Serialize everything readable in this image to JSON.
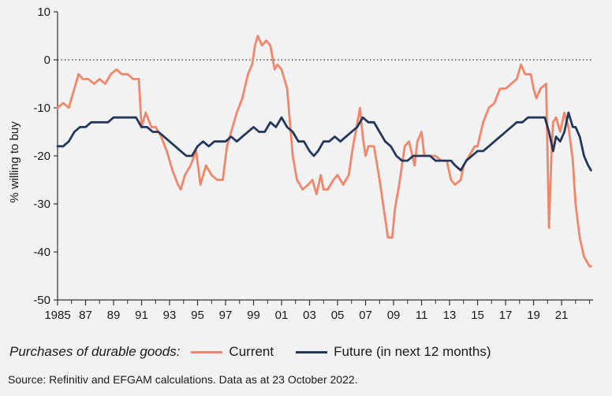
{
  "chart_data": {
    "type": "line",
    "ylabel": "% willing to buy",
    "xlabel": "",
    "ylim": [
      -50,
      10
    ],
    "yticks": [
      10,
      0,
      -10,
      -20,
      -30,
      -40,
      -50
    ],
    "ytick_labels": [
      "10",
      "0",
      "-10",
      "-20",
      "-30",
      "-40",
      "-50"
    ],
    "xlim": [
      1985,
      2023.25
    ],
    "xticks": [
      1985,
      1987,
      1989,
      1991,
      1993,
      1995,
      1997,
      1999,
      2001,
      2003,
      2005,
      2007,
      2009,
      2011,
      2013,
      2015,
      2017,
      2019,
      2021
    ],
    "xtick_labels": [
      "1985",
      "87",
      "89",
      "91",
      "93",
      "95",
      "97",
      "99",
      "01",
      "03",
      "05",
      "07",
      "09",
      "11",
      "13",
      "15",
      "17",
      "19",
      "21"
    ],
    "reference_line": 0,
    "legend_title": "Purchases of durable goods:",
    "series": [
      {
        "name": "Current",
        "color": "#f0866a",
        "x": [
          1985.0,
          1985.4,
          1985.8,
          1986.2,
          1986.5,
          1986.8,
          1987.2,
          1987.6,
          1988.0,
          1988.4,
          1988.8,
          1989.2,
          1989.6,
          1990.0,
          1990.4,
          1990.8,
          1991.0,
          1991.3,
          1991.7,
          1992.0,
          1992.4,
          1992.8,
          1993.2,
          1993.6,
          1993.8,
          1994.1,
          1994.5,
          1994.9,
          1995.2,
          1995.6,
          1996.0,
          1996.4,
          1996.8,
          1997.1,
          1997.5,
          1997.8,
          1998.2,
          1998.6,
          1998.9,
          1999.1,
          1999.3,
          1999.6,
          1999.9,
          2000.2,
          2000.5,
          2000.7,
          2001.0,
          2001.4,
          2001.8,
          2002.1,
          2002.5,
          2002.9,
          2003.2,
          2003.5,
          2003.8,
          2004.0,
          2004.3,
          2004.7,
          2005.0,
          2005.4,
          2005.8,
          2006.1,
          2006.3,
          2006.6,
          2006.8,
          2007.0,
          2007.2,
          2007.6,
          2008.0,
          2008.3,
          2008.6,
          2008.9,
          2009.1,
          2009.4,
          2009.8,
          2010.1,
          2010.5,
          2010.7,
          2011.0,
          2011.2,
          2011.6,
          2012.0,
          2012.4,
          2012.8,
          2013.1,
          2013.4,
          2013.8,
          2014.0,
          2014.4,
          2014.8,
          2015.0,
          2015.4,
          2015.8,
          2016.2,
          2016.6,
          2017.0,
          2017.4,
          2017.8,
          2018.1,
          2018.4,
          2018.8,
          2019.0,
          2019.2,
          2019.5,
          2019.9,
          2020.1,
          2020.3,
          2020.4,
          2020.6,
          2020.9,
          2021.2,
          2021.5,
          2021.8,
          2022.0,
          2022.3,
          2022.6,
          2022.8,
          2023.0,
          2023.1
        ],
        "values": [
          -10,
          -9,
          -10,
          -6,
          -3,
          -4,
          -4,
          -5,
          -4,
          -5,
          -3,
          -2,
          -3,
          -3,
          -4,
          -4,
          -14,
          -11,
          -14,
          -14,
          -16,
          -19,
          -23,
          -26,
          -27,
          -24,
          -22,
          -19,
          -26,
          -22,
          -24,
          -25,
          -25,
          -18,
          -14,
          -11,
          -8,
          -3,
          -1,
          3,
          5,
          3,
          4,
          3,
          -2,
          -1,
          -2,
          -6,
          -20,
          -25,
          -27,
          -26,
          -25,
          -28,
          -24,
          -27,
          -27,
          -25,
          -24,
          -26,
          -24,
          -18,
          -15,
          -10,
          -16,
          -20,
          -18,
          -18,
          -25,
          -31,
          -37,
          -37,
          -31,
          -26,
          -18,
          -17,
          -22,
          -17,
          -15,
          -20,
          -20,
          -20,
          -21,
          -21,
          -25,
          -26,
          -25,
          -22,
          -20,
          -18,
          -18,
          -13,
          -10,
          -9,
          -6,
          -6,
          -5,
          -4,
          -1,
          -3,
          -3,
          -6,
          -8,
          -6,
          -5,
          -35,
          -18,
          -13,
          -12,
          -15,
          -11,
          -14,
          -21,
          -30,
          -37,
          -41,
          -42,
          -43,
          -43
        ]
      },
      {
        "name": "Future (in next 12 months)",
        "color": "#22375a",
        "x": [
          1985.0,
          1985.4,
          1985.8,
          1986.2,
          1986.6,
          1987.0,
          1987.4,
          1987.8,
          1988.2,
          1988.6,
          1989.0,
          1989.4,
          1989.8,
          1990.2,
          1990.6,
          1991.0,
          1991.4,
          1991.8,
          1992.2,
          1992.6,
          1993.0,
          1993.4,
          1993.8,
          1994.2,
          1994.6,
          1995.0,
          1995.4,
          1995.8,
          1996.2,
          1996.6,
          1997.0,
          1997.4,
          1997.8,
          1998.2,
          1998.6,
          1999.0,
          1999.4,
          1999.8,
          2000.2,
          2000.6,
          2001.0,
          2001.4,
          2001.8,
          2002.2,
          2002.6,
          2003.0,
          2003.3,
          2003.6,
          2004.0,
          2004.4,
          2004.8,
          2005.2,
          2005.6,
          2006.0,
          2006.4,
          2006.8,
          2007.2,
          2007.6,
          2008.0,
          2008.4,
          2008.8,
          2009.2,
          2009.6,
          2010.0,
          2010.4,
          2010.8,
          2011.2,
          2011.6,
          2012.0,
          2012.4,
          2012.8,
          2013.1,
          2013.4,
          2013.8,
          2014.2,
          2014.6,
          2015.0,
          2015.4,
          2015.8,
          2016.2,
          2016.6,
          2017.0,
          2017.4,
          2017.8,
          2018.2,
          2018.6,
          2019.0,
          2019.4,
          2019.8,
          2020.1,
          2020.4,
          2020.6,
          2020.9,
          2021.2,
          2021.5,
          2021.8,
          2022.0,
          2022.3,
          2022.6,
          2022.9,
          2023.1
        ],
        "values": [
          -18,
          -18,
          -17,
          -15,
          -14,
          -14,
          -13,
          -13,
          -13,
          -13,
          -12,
          -12,
          -12,
          -12,
          -12,
          -14,
          -14,
          -15,
          -15,
          -16,
          -17,
          -18,
          -19,
          -20,
          -20,
          -18,
          -17,
          -18,
          -17,
          -17,
          -17,
          -16,
          -17,
          -16,
          -15,
          -14,
          -15,
          -15,
          -13,
          -14,
          -12,
          -14,
          -15,
          -17,
          -17,
          -19,
          -20,
          -19,
          -17,
          -17,
          -16,
          -17,
          -16,
          -15,
          -14,
          -12,
          -13,
          -13,
          -15,
          -17,
          -18,
          -20,
          -21,
          -21,
          -20,
          -20,
          -20,
          -20,
          -21,
          -21,
          -21,
          -21,
          -22,
          -23,
          -21,
          -20,
          -19,
          -19,
          -18,
          -17,
          -16,
          -15,
          -14,
          -13,
          -13,
          -12,
          -12,
          -12,
          -12,
          -15,
          -19,
          -16,
          -17,
          -15,
          -11,
          -14,
          -14,
          -16,
          -20,
          -22,
          -23
        ]
      }
    ]
  },
  "source": "Source: Refinitiv and EFGAM calculations. Data as at 23 October 2022."
}
